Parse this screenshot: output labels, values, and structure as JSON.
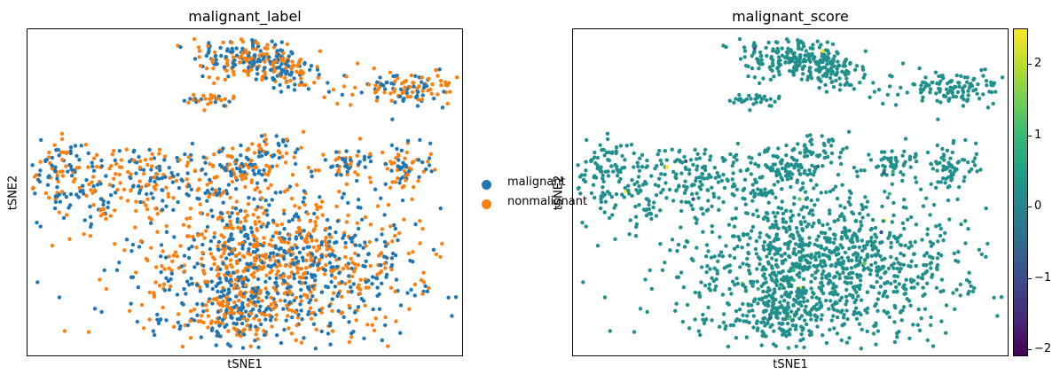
{
  "chart_data": [
    {
      "type": "scatter",
      "title": "malignant_label",
      "xlabel": "tSNE1",
      "ylabel": "tSNE2",
      "legend": {
        "placement": "right-outside",
        "entries": [
          {
            "label": "malignant",
            "color": "#1f77b4"
          },
          {
            "label": "nonmalignant",
            "color": "#ff7f0e"
          }
        ]
      },
      "colors": {
        "malignant": "#1f77b4",
        "nonmalignant": "#ff7f0e"
      },
      "grid": false,
      "ticks": "none",
      "point_groups": [
        {
          "cx": 0.5,
          "cy": 0.91,
          "sx": 0.06,
          "sy": 0.035,
          "n": 180
        },
        {
          "cx": 0.48,
          "cy": 0.58,
          "sx": 0.045,
          "sy": 0.035,
          "n": 120
        },
        {
          "cx": 0.6,
          "cy": 0.87,
          "sx": 0.035,
          "sy": 0.03,
          "n": 90
        },
        {
          "cx": 0.88,
          "cy": 0.82,
          "sx": 0.08,
          "sy": 0.025,
          "n": 140
        },
        {
          "cx": 0.08,
          "cy": 0.55,
          "sx": 0.07,
          "sy": 0.07,
          "n": 160
        },
        {
          "cx": 0.28,
          "cy": 0.55,
          "sx": 0.07,
          "sy": 0.05,
          "n": 130
        },
        {
          "cx": 0.74,
          "cy": 0.6,
          "sx": 0.03,
          "sy": 0.02,
          "n": 50
        },
        {
          "cx": 0.87,
          "cy": 0.57,
          "sx": 0.03,
          "sy": 0.035,
          "n": 70
        },
        {
          "cx": 0.42,
          "cy": 0.78,
          "sx": 0.03,
          "sy": 0.012,
          "n": 30
        },
        {
          "cx": 0.57,
          "cy": 0.65,
          "sx": 0.04,
          "sy": 0.03,
          "n": 30
        },
        {
          "cx": 0.17,
          "cy": 0.45,
          "sx": 0.012,
          "sy": 0.02,
          "n": 15
        },
        {
          "cx": 0.45,
          "cy": 0.5,
          "sx": 0.02,
          "sy": 0.01,
          "n": 12
        },
        {
          "cx": 0.57,
          "cy": 0.28,
          "sx": 0.16,
          "sy": 0.12,
          "n": 1100
        },
        {
          "cx": 0.48,
          "cy": 0.12,
          "sx": 0.05,
          "sy": 0.04,
          "n": 150
        }
      ],
      "marker_size": 2.2
    },
    {
      "type": "scatter",
      "title": "malignant_score",
      "xlabel": "tSNE1",
      "ylabel": "tSNE2",
      "colorbar": {
        "colormap": "viridis",
        "range": [
          -2.1,
          2.5
        ],
        "ticks": [
          "2",
          "1",
          "0",
          "−1",
          "−2"
        ],
        "tick_values": [
          2,
          1,
          0,
          -1,
          -2
        ]
      },
      "base_color": "#21908d",
      "highlight_colors": [
        "#5ec962",
        "#fde725",
        "#3b528b",
        "#35b779"
      ],
      "grid": false,
      "ticks": "none",
      "marker_size": 2.2
    }
  ]
}
